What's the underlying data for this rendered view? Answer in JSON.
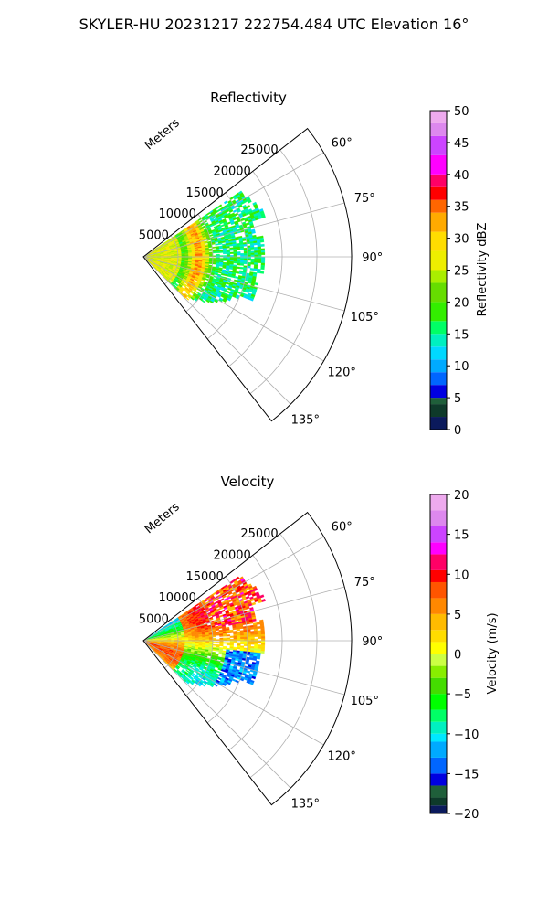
{
  "figure": {
    "suptitle": "SKYLER-HU  20231217  222754.484 UTC Elevation 16°"
  },
  "chart_data": [
    {
      "type": "heatmap",
      "title": "Reflectivity",
      "radial_axis_label": "Meters",
      "radial_ticks": [
        "5000",
        "10000",
        "15000",
        "20000",
        "25000"
      ],
      "radial_tick_values": [
        5000,
        10000,
        15000,
        20000,
        25000
      ],
      "radial_range": [
        0,
        30000
      ],
      "angle_ticks": [
        "60°",
        "75°",
        "90°",
        "105°",
        "120°",
        "135°"
      ],
      "angle_tick_values": [
        60,
        75,
        90,
        105,
        120,
        135
      ],
      "angle_range": [
        52,
        142
      ],
      "grid": true,
      "colorbar": {
        "label": "Reflectivity dBZ",
        "range": [
          0,
          50
        ],
        "ticks": [
          "0",
          "5",
          "10",
          "15",
          "20",
          "25",
          "30",
          "35",
          "40",
          "45",
          "50"
        ],
        "tick_values": [
          0,
          5,
          10,
          15,
          20,
          25,
          30,
          35,
          40,
          45,
          50
        ]
      },
      "colormap": [
        [
          0,
          "#0b1a5c"
        ],
        [
          2,
          "#0e3a2a"
        ],
        [
          4,
          "#1f5f3a"
        ],
        [
          5,
          "#0000e0"
        ],
        [
          7,
          "#0066ff"
        ],
        [
          9,
          "#00aaff"
        ],
        [
          11,
          "#00d8ff"
        ],
        [
          13,
          "#00f0c0"
        ],
        [
          15,
          "#00ff66"
        ],
        [
          17,
          "#33ee00"
        ],
        [
          20,
          "#66dd00"
        ],
        [
          23,
          "#aaee00"
        ],
        [
          25,
          "#eeee00"
        ],
        [
          28,
          "#ffdd00"
        ],
        [
          31,
          "#ffaa00"
        ],
        [
          34,
          "#ff6600"
        ],
        [
          36,
          "#ff0000"
        ],
        [
          38,
          "#ff0066"
        ],
        [
          40,
          "#ff00ff"
        ],
        [
          43,
          "#cc44ff"
        ],
        [
          46,
          "#dd88ee"
        ],
        [
          48,
          "#eeaaee"
        ],
        [
          50,
          "#ffe8ff"
        ]
      ]
    },
    {
      "type": "heatmap",
      "title": "Velocity",
      "radial_axis_label": "Meters",
      "radial_ticks": [
        "5000",
        "10000",
        "15000",
        "20000",
        "25000"
      ],
      "radial_tick_values": [
        5000,
        10000,
        15000,
        20000,
        25000
      ],
      "radial_range": [
        0,
        30000
      ],
      "angle_ticks": [
        "60°",
        "75°",
        "90°",
        "105°",
        "120°",
        "135°"
      ],
      "angle_tick_values": [
        60,
        75,
        90,
        105,
        120,
        135
      ],
      "angle_range": [
        52,
        142
      ],
      "grid": true,
      "colorbar": {
        "label": "Velocity (m/s)",
        "range": [
          -20,
          20
        ],
        "ticks": [
          "−20",
          "−15",
          "−10",
          "−5",
          "0",
          "5",
          "10",
          "15",
          "20"
        ],
        "tick_values": [
          -20,
          -15,
          -10,
          -5,
          0,
          5,
          10,
          15,
          20
        ]
      },
      "colormap": [
        [
          -20,
          "#0b1a5c"
        ],
        [
          -19,
          "#0e3a2a"
        ],
        [
          -18,
          "#1f5f3a"
        ],
        [
          -16.5,
          "#0000e0"
        ],
        [
          -15,
          "#0066ff"
        ],
        [
          -13,
          "#00aaff"
        ],
        [
          -11,
          "#00e8ff"
        ],
        [
          -10,
          "#00f0c0"
        ],
        [
          -8.5,
          "#00ff66"
        ],
        [
          -7,
          "#00ff00"
        ],
        [
          -5,
          "#44dd00"
        ],
        [
          -3,
          "#88ee00"
        ],
        [
          -1.5,
          "#ccff44"
        ],
        [
          0,
          "#ffff00"
        ],
        [
          1.5,
          "#ffdd00"
        ],
        [
          3,
          "#ffbb00"
        ],
        [
          5,
          "#ff8800"
        ],
        [
          7,
          "#ff5500"
        ],
        [
          9,
          "#ff0000"
        ],
        [
          10.5,
          "#ff0066"
        ],
        [
          12.5,
          "#ff00ff"
        ],
        [
          14,
          "#cc44ff"
        ],
        [
          16,
          "#dd88ee"
        ],
        [
          18,
          "#eeaaee"
        ],
        [
          20,
          "#ffe8ff"
        ]
      ]
    }
  ]
}
